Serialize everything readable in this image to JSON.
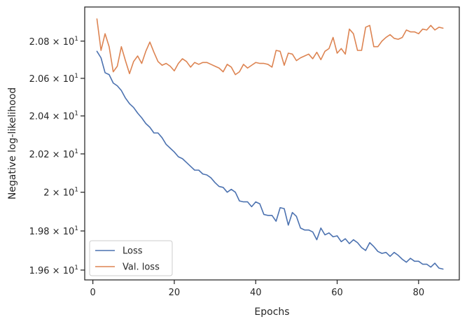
{
  "chart_data": {
    "type": "line",
    "title": "",
    "xlabel": "Epochs",
    "ylabel": "Negative log-likelihood",
    "xlim": [
      -2,
      90
    ],
    "ylim": [
      19.55,
      20.985
    ],
    "y_scale": "log",
    "grid": false,
    "legend_position": "lower-left",
    "x_ticks": [
      {
        "value": 0,
        "label": "0"
      },
      {
        "value": 20,
        "label": "20"
      },
      {
        "value": 40,
        "label": "40"
      },
      {
        "value": 60,
        "label": "60"
      },
      {
        "value": 80,
        "label": "80"
      }
    ],
    "y_ticks": [
      {
        "value": 19.6,
        "mantissa": "1.96",
        "base": "10",
        "exp": "1"
      },
      {
        "value": 19.8,
        "mantissa": "1.98",
        "base": "10",
        "exp": "1"
      },
      {
        "value": 20.0,
        "mantissa": "2",
        "base": "10",
        "exp": "1"
      },
      {
        "value": 20.2,
        "mantissa": "2.02",
        "base": "10",
        "exp": "1"
      },
      {
        "value": 20.4,
        "mantissa": "2.04",
        "base": "10",
        "exp": "1"
      },
      {
        "value": 20.6,
        "mantissa": "2.06",
        "base": "10",
        "exp": "1"
      },
      {
        "value": 20.8,
        "mantissa": "2.08",
        "base": "10",
        "exp": "1"
      }
    ],
    "x": [
      1,
      2,
      3,
      4,
      5,
      6,
      7,
      8,
      9,
      10,
      11,
      12,
      13,
      14,
      15,
      16,
      17,
      18,
      19,
      20,
      21,
      22,
      23,
      24,
      25,
      26,
      27,
      28,
      29,
      30,
      31,
      32,
      33,
      34,
      35,
      36,
      37,
      38,
      39,
      40,
      41,
      42,
      43,
      44,
      45,
      46,
      47,
      48,
      49,
      50,
      51,
      52,
      53,
      54,
      55,
      56,
      57,
      58,
      59,
      60,
      61,
      62,
      63,
      64,
      65,
      66,
      67,
      68,
      69,
      70,
      71,
      72,
      73,
      74,
      75,
      76,
      77,
      78,
      79,
      80,
      81,
      82,
      83,
      84,
      85,
      86
    ],
    "series": [
      {
        "name": "Loss",
        "color": "#4c72b0",
        "values": [
          20.745,
          20.71,
          20.63,
          20.62,
          20.575,
          20.56,
          20.535,
          20.495,
          20.465,
          20.445,
          20.415,
          20.39,
          20.36,
          20.34,
          20.31,
          20.31,
          20.285,
          20.25,
          20.23,
          20.21,
          20.185,
          20.175,
          20.155,
          20.135,
          20.115,
          20.115,
          20.095,
          20.09,
          20.075,
          20.05,
          20.03,
          20.025,
          20.0,
          20.015,
          20.0,
          19.955,
          19.95,
          19.95,
          19.925,
          19.95,
          19.94,
          19.885,
          19.88,
          19.88,
          19.85,
          19.92,
          19.915,
          19.83,
          19.895,
          19.875,
          19.815,
          19.805,
          19.805,
          19.795,
          19.755,
          19.815,
          19.78,
          19.79,
          19.77,
          19.775,
          19.745,
          19.76,
          19.735,
          19.755,
          19.74,
          19.715,
          19.7,
          19.74,
          19.72,
          19.695,
          19.685,
          19.69,
          19.67,
          19.69,
          19.675,
          19.655,
          19.64,
          19.66,
          19.645,
          19.645,
          19.63,
          19.63,
          19.615,
          19.635,
          19.61,
          19.605
        ]
      },
      {
        "name": "Val. loss",
        "color": "#dd8452",
        "values": [
          20.92,
          20.75,
          20.84,
          20.77,
          20.635,
          20.665,
          20.77,
          20.695,
          20.625,
          20.69,
          20.72,
          20.68,
          20.745,
          20.795,
          20.74,
          20.69,
          20.67,
          20.68,
          20.665,
          20.64,
          20.68,
          20.705,
          20.69,
          20.66,
          20.685,
          20.675,
          20.685,
          20.685,
          20.675,
          20.665,
          20.655,
          20.635,
          20.675,
          20.66,
          20.62,
          20.635,
          20.675,
          20.655,
          20.67,
          20.685,
          20.68,
          20.68,
          20.675,
          20.66,
          20.75,
          20.745,
          20.67,
          20.735,
          20.73,
          20.695,
          20.71,
          20.72,
          20.73,
          20.705,
          20.74,
          20.7,
          20.745,
          20.76,
          20.82,
          20.735,
          20.76,
          20.73,
          20.865,
          20.84,
          20.75,
          20.75,
          20.875,
          20.885,
          20.77,
          20.77,
          20.8,
          20.82,
          20.835,
          20.815,
          20.81,
          20.82,
          20.86,
          20.85,
          20.85,
          20.84,
          20.865,
          20.86,
          20.885,
          20.86,
          20.875,
          20.87
        ]
      }
    ]
  }
}
